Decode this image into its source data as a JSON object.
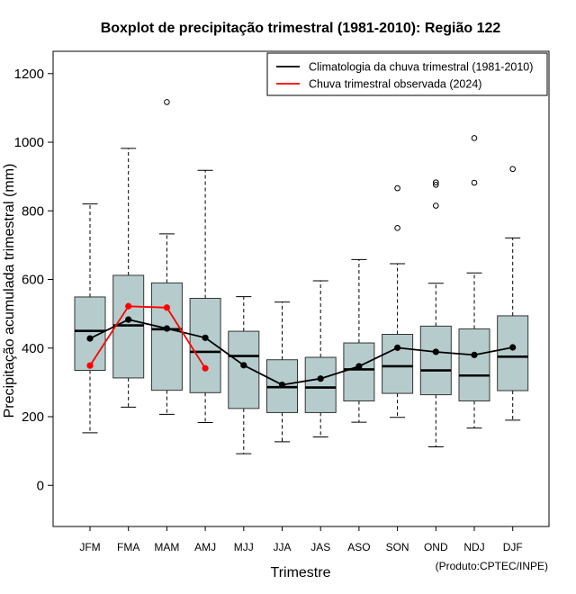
{
  "chart_data": {
    "type": "boxplot",
    "title": "Boxplot de precipitação trimestral (1981-2010): Região 122",
    "xlabel": "Trimestre",
    "ylabel": "Precipitação acumulada trimestral (mm)",
    "ylim": [
      -120,
      1265
    ],
    "yticks": [
      0,
      200,
      400,
      600,
      800,
      1000,
      1200
    ],
    "grid": false,
    "legend_position": "top-right",
    "categories": [
      "JFM",
      "FMA",
      "MAM",
      "AMJ",
      "MJJ",
      "JJA",
      "JAS",
      "ASO",
      "SON",
      "OND",
      "NDJ",
      "DJF"
    ],
    "boxes": [
      {
        "whisker_low": 153,
        "q1": 335,
        "median": 450,
        "q3": 549,
        "whisker_high": 820,
        "outliers": []
      },
      {
        "whisker_low": 228,
        "q1": 313,
        "median": 466,
        "q3": 612,
        "whisker_high": 982,
        "outliers": []
      },
      {
        "whisker_low": 207,
        "q1": 277,
        "median": 455,
        "q3": 590,
        "whisker_high": 733,
        "outliers": [
          1117
        ]
      },
      {
        "whisker_low": 183,
        "q1": 270,
        "median": 389,
        "q3": 545,
        "whisker_high": 918,
        "outliers": []
      },
      {
        "whisker_low": 92,
        "q1": 224,
        "median": 377,
        "q3": 449,
        "whisker_high": 550,
        "outliers": []
      },
      {
        "whisker_low": 127,
        "q1": 212,
        "median": 286,
        "q3": 366,
        "whisker_high": 534,
        "outliers": []
      },
      {
        "whisker_low": 141,
        "q1": 212,
        "median": 285,
        "q3": 373,
        "whisker_high": 596,
        "outliers": []
      },
      {
        "whisker_low": 184,
        "q1": 246,
        "median": 338,
        "q3": 415,
        "whisker_high": 658,
        "outliers": []
      },
      {
        "whisker_low": 198,
        "q1": 268,
        "median": 347,
        "q3": 440,
        "whisker_high": 646,
        "outliers": [
          750,
          866
        ]
      },
      {
        "whisker_low": 112,
        "q1": 264,
        "median": 335,
        "q3": 464,
        "whisker_high": 589,
        "outliers": [
          815,
          876,
          883
        ]
      },
      {
        "whisker_low": 167,
        "q1": 246,
        "median": 320,
        "q3": 456,
        "whisker_high": 619,
        "outliers": [
          882,
          1012
        ]
      },
      {
        "whisker_low": 190,
        "q1": 276,
        "median": 375,
        "q3": 494,
        "whisker_high": 721,
        "outliers": [
          922
        ]
      }
    ],
    "series": [
      {
        "name": "Climatologia da chuva trimestral (1981-2010)",
        "color": "#000000",
        "values": [
          428,
          483,
          457,
          430,
          350,
          293,
          311,
          347,
          401,
          389,
          380,
          402
        ]
      },
      {
        "name": "Chuva trimestral observada (2024)",
        "color": "#ff0000",
        "values": [
          349,
          522,
          518,
          341
        ]
      }
    ],
    "box_fill": "#b6cccc",
    "credit": "(Produto:CPTEC/INPE)"
  }
}
